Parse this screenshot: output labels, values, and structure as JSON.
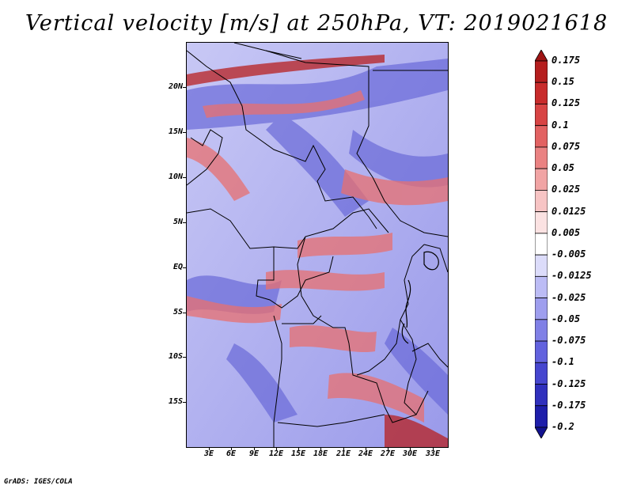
{
  "title": "Vertical velocity [m/s] at 250hPa, VT: 2019021618",
  "footer": "GrADS: IGES/COLA",
  "map": {
    "lat_labels": [
      "20N",
      "15N",
      "10N",
      "5N",
      "EQ",
      "5S",
      "10S",
      "15S"
    ],
    "lon_labels": [
      "3E",
      "6E",
      "9E",
      "12E",
      "15E",
      "18E",
      "21E",
      "24E",
      "27E",
      "30E",
      "33E"
    ]
  },
  "colorbar": {
    "labels": [
      "0.175",
      "0.15",
      "0.125",
      "0.1",
      "0.075",
      "0.05",
      "0.025",
      "0.0125",
      "0.005",
      "-0.005",
      "-0.0125",
      "-0.025",
      "-0.05",
      "-0.075",
      "-0.1",
      "-0.125",
      "-0.175",
      "-0.2"
    ],
    "colors": [
      "#9e1414",
      "#b51e1e",
      "#c82b2b",
      "#d84444",
      "#e26262",
      "#ea8282",
      "#f1a4a4",
      "#f7c4c4",
      "#fbe2e2",
      "#ffffff",
      "#dcdcfa",
      "#bcbcf5",
      "#9e9eee",
      "#8080e6",
      "#6262de",
      "#4646cf",
      "#3030bd",
      "#1e1eaa",
      "#12128f"
    ]
  }
}
